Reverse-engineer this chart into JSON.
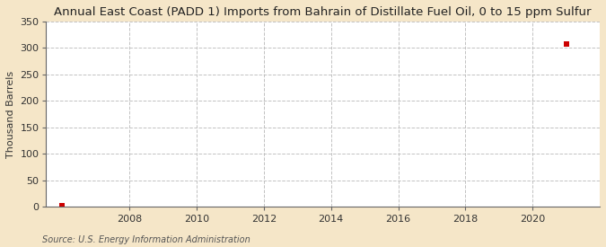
{
  "title": "Annual East Coast (PADD 1) Imports from Bahrain of Distillate Fuel Oil, 0 to 15 ppm Sulfur",
  "ylabel": "Thousand Barrels",
  "source": "Source: U.S. Energy Information Administration",
  "background_color": "#f5e6c8",
  "plot_bg_color": "#ffffff",
  "data_points": [
    {
      "year": 2006,
      "value": 3
    },
    {
      "year": 2021,
      "value": 308
    }
  ],
  "marker_color": "#cc0000",
  "marker_size": 4,
  "xlim": [
    2005.5,
    2022.0
  ],
  "ylim": [
    0,
    350
  ],
  "yticks": [
    0,
    50,
    100,
    150,
    200,
    250,
    300,
    350
  ],
  "xticks": [
    2008,
    2010,
    2012,
    2014,
    2016,
    2018,
    2020
  ],
  "grid_color": "#bbbbbb",
  "title_fontsize": 9.5,
  "label_fontsize": 8,
  "tick_fontsize": 8,
  "source_fontsize": 7
}
